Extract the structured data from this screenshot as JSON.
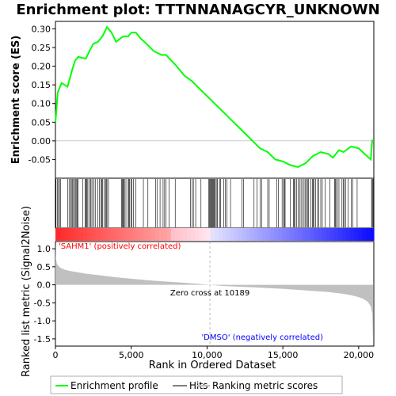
{
  "chart_data": {
    "type": "line",
    "title": "Enrichment plot: TTTNNANAGCYR_UNKNOWN",
    "top_panel": {
      "ylabel": "Enrichment score (ES)",
      "ylim": [
        -0.1,
        0.32
      ],
      "yticks": [
        "0.30",
        "0.25",
        "0.20",
        "0.15",
        "0.10",
        "0.05",
        "0.00",
        "-0.05"
      ],
      "ytick_values": [
        0.3,
        0.25,
        0.2,
        0.15,
        0.1,
        0.05,
        0.0,
        -0.05
      ],
      "series": [
        {
          "name": "Enrichment profile",
          "color": "#00ff00",
          "x": [
            0,
            150,
            400,
            800,
            1100,
            1300,
            1500,
            2000,
            2300,
            2500,
            2800,
            3100,
            3400,
            3700,
            4000,
            4300,
            4500,
            4800,
            5000,
            5300,
            5600,
            6000,
            6500,
            7000,
            7300,
            8000,
            8500,
            9000,
            9500,
            10000,
            10500,
            11000,
            11500,
            12000,
            12500,
            13000,
            13500,
            14000,
            14500,
            15000,
            15500,
            16000,
            16500,
            17000,
            17500,
            18000,
            18300,
            18700,
            19000,
            19500,
            20000,
            20400,
            20800,
            20850,
            20900
          ],
          "y": [
            0.05,
            0.13,
            0.155,
            0.145,
            0.19,
            0.215,
            0.225,
            0.22,
            0.245,
            0.26,
            0.265,
            0.28,
            0.305,
            0.29,
            0.265,
            0.275,
            0.28,
            0.28,
            0.29,
            0.29,
            0.275,
            0.26,
            0.24,
            0.23,
            0.23,
            0.2,
            0.175,
            0.16,
            0.14,
            0.12,
            0.1,
            0.08,
            0.06,
            0.04,
            0.02,
            0.0,
            -0.02,
            -0.03,
            -0.05,
            -0.055,
            -0.065,
            -0.07,
            -0.06,
            -0.04,
            -0.03,
            -0.035,
            -0.045,
            -0.025,
            -0.03,
            -0.015,
            -0.02,
            -0.035,
            -0.05,
            -0.02,
            0.003
          ]
        }
      ]
    },
    "hits_panel": {
      "legend_entry": "Hits",
      "hit_positions": [
        40,
        120,
        210,
        260,
        350,
        820,
        900,
        1000,
        1050,
        1120,
        1200,
        1250,
        1320,
        1400,
        1450,
        1500,
        1800,
        1950,
        2000,
        2050,
        2100,
        2200,
        2300,
        2350,
        2450,
        2550,
        2650,
        2800,
        2900,
        3000,
        3050,
        3100,
        3200,
        3300,
        3350,
        3400,
        3500,
        4350,
        4400,
        4450,
        4500,
        4550,
        4650,
        4800,
        4850,
        4900,
        5000,
        5050,
        5150,
        5300,
        5800,
        6100,
        6600,
        6700,
        6900,
        7100,
        7200,
        7300,
        7500,
        7900,
        8900,
        9000,
        9100,
        9250,
        9600,
        10100,
        10150,
        10200,
        10250,
        10300,
        10350,
        10400,
        10450,
        10500,
        10550,
        10650,
        10700,
        10850,
        10900,
        11100,
        11200,
        11300,
        11550,
        12300,
        12400,
        13100,
        13300,
        13500,
        13600,
        14000,
        14100,
        14600,
        14700,
        14950,
        15050,
        15100,
        15150,
        15500,
        15700,
        15750,
        15800,
        15900,
        16000,
        16100,
        16200,
        16300,
        16400,
        16500,
        16550,
        16650,
        16700,
        16850,
        16950,
        17000,
        17050,
        17150,
        17300,
        17350,
        17500,
        17600,
        17800,
        18100,
        18400,
        18450,
        18500,
        18600,
        18700,
        18900,
        19000,
        19050,
        19150,
        19300,
        19500,
        19600,
        19900,
        20850,
        20900,
        20950
      ]
    },
    "metric_panel": {
      "ylabel": "Ranked list metric (Signal2Noise)",
      "xlabel": "Rank in Ordered Dataset",
      "ylim": [
        -1.7,
        1.2
      ],
      "yticks": [
        "1.0",
        "0.5",
        "0.0",
        "-0.5",
        "-1.0",
        "-1.5"
      ],
      "ytick_values": [
        1.0,
        0.5,
        0.0,
        -0.5,
        -1.0,
        -1.5
      ],
      "xticks": [
        "0",
        "5,000",
        "10,000",
        "15,000",
        "20,000"
      ],
      "xtick_values": [
        0,
        5000,
        10000,
        15000,
        20000
      ],
      "xlim": [
        0,
        21000
      ],
      "metric_curve": {
        "x": [
          0,
          20,
          100,
          300,
          600,
          1000,
          2000,
          3000,
          4000,
          5000,
          6000,
          7000,
          8000,
          9000,
          10189,
          11000,
          12000,
          13000,
          14000,
          15000,
          16000,
          17000,
          18000,
          19000,
          19500,
          20000,
          20300,
          20600,
          20800,
          20900,
          20950
        ],
        "y": [
          1.15,
          0.75,
          0.58,
          0.48,
          0.42,
          0.38,
          0.31,
          0.26,
          0.21,
          0.17,
          0.13,
          0.1,
          0.07,
          0.04,
          0.0,
          -0.03,
          -0.05,
          -0.07,
          -0.09,
          -0.11,
          -0.14,
          -0.17,
          -0.2,
          -0.25,
          -0.29,
          -0.34,
          -0.39,
          -0.47,
          -0.6,
          -0.8,
          -1.6
        ]
      },
      "zero_cross_label": "Zero cross at 10189",
      "zero_cross": 10189,
      "positive_label": "'SAHM1' (positively correlated)",
      "negative_label": "'DMSO' (negatively correlated)"
    },
    "legend": {
      "placement": "bottom",
      "entries": [
        "Enrichment profile",
        "Hits",
        "Ranking metric scores"
      ]
    },
    "colors": {
      "profile": "#00ff00",
      "hits": "#000000",
      "metric": "#c0c0c0",
      "positive_text": "#ff0000",
      "negative_text": "#0000ff",
      "zero_text": "#000000"
    }
  }
}
